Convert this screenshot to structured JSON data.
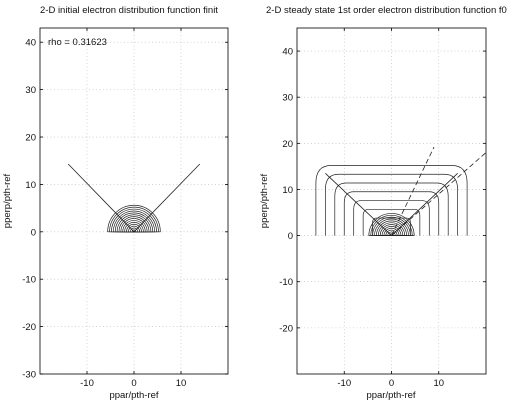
{
  "chart_data": [
    {
      "type": "contour",
      "title": "2-D initial electron distribution function finit",
      "xlabel": "ppar/pth-ref",
      "ylabel": "pperp/pth-ref",
      "xlim": [
        -20,
        20
      ],
      "ylim": [
        -30,
        43
      ],
      "xticks": [
        -10,
        0,
        10
      ],
      "yticks": [
        -30,
        -20,
        -10,
        0,
        10,
        20,
        30,
        40
      ],
      "grid": true,
      "annotation": "rho = 0.31623",
      "contour_center": [
        0,
        0
      ],
      "contour_levels_radius": [
        0.4,
        0.8,
        1.2,
        1.6,
        2.0,
        2.4,
        2.8,
        3.2,
        3.6,
        4.0,
        4.4,
        4.8,
        5.2,
        5.6
      ],
      "rays": [
        {
          "style": "solid",
          "from": [
            0,
            0
          ],
          "to": [
            -14,
            14.3
          ]
        },
        {
          "style": "solid",
          "from": [
            0,
            0
          ],
          "to": [
            14,
            14.3
          ]
        }
      ]
    },
    {
      "type": "contour",
      "title": "2-D steady state 1st order electron distribution function f0",
      "xlabel": "ppar/pth-ref",
      "ylabel": "pperp/pth-ref",
      "xlim": [
        -20,
        20
      ],
      "ylim": [
        -30,
        45
      ],
      "xticks": [
        -10,
        0,
        10
      ],
      "yticks": [
        -20,
        -10,
        0,
        10,
        20,
        30,
        40
      ],
      "grid": true,
      "contour_center": [
        0,
        0
      ],
      "contour_levels_radius": [
        0.4,
        0.8,
        1.2,
        1.6,
        2.0,
        2.4,
        2.8,
        3.2,
        3.6,
        4.0,
        4.4,
        4.8
      ],
      "outer_contours_half_width": [
        4,
        6,
        8,
        10,
        12,
        14,
        16
      ],
      "rays": [
        {
          "style": "solid",
          "from": [
            0,
            0
          ],
          "to": [
            -14,
            13.5
          ]
        },
        {
          "style": "solid",
          "from": [
            0,
            0
          ],
          "to": [
            14,
            13.5
          ]
        },
        {
          "style": "dashed",
          "from": [
            0,
            0
          ],
          "to": [
            9,
            19.2
          ]
        },
        {
          "style": "dashed",
          "from": [
            0,
            0
          ],
          "to": [
            20,
            18
          ]
        }
      ]
    }
  ]
}
